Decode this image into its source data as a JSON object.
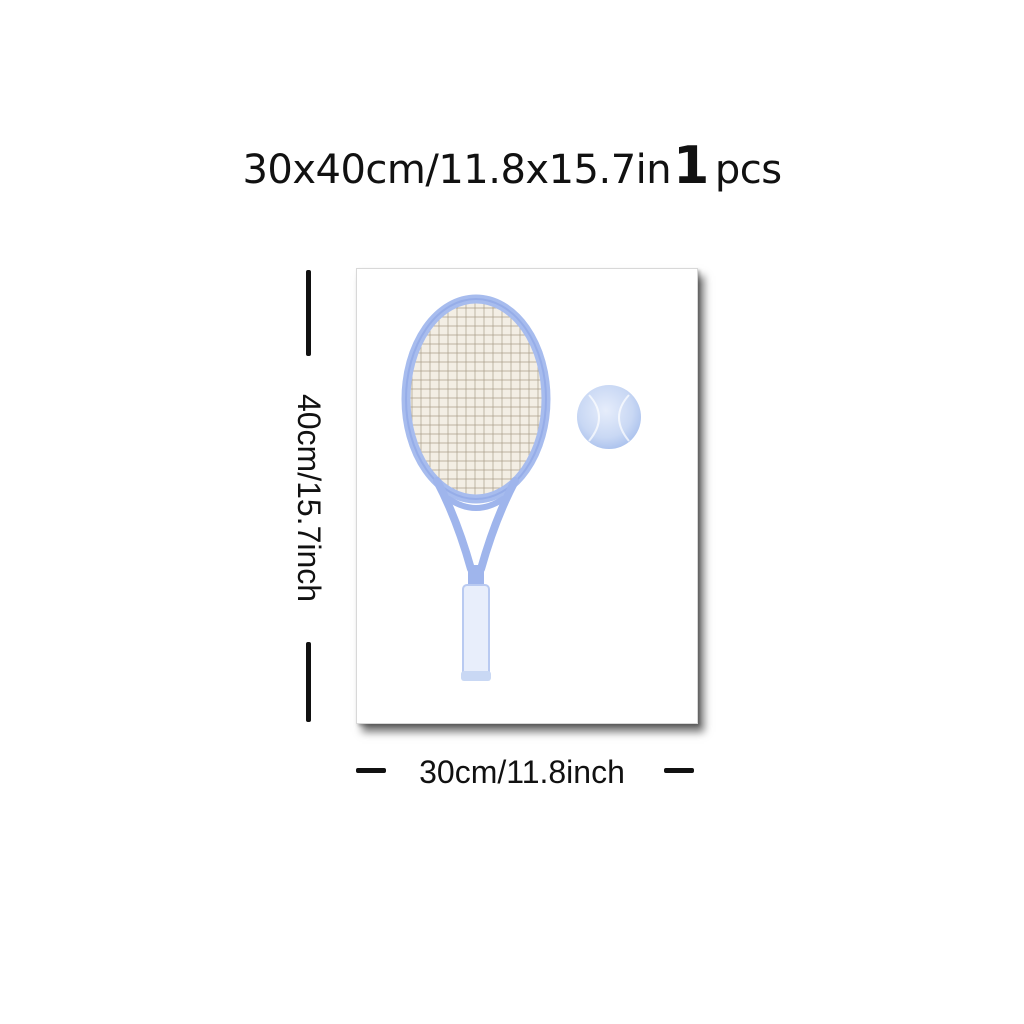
{
  "title": {
    "size_text": "30x40cm/11.8x15.7in",
    "quantity": "1",
    "unit": "pcs"
  },
  "dimensions": {
    "height_label": "40cm/15.7inch",
    "width_label": "30cm/11.8inch"
  },
  "artwork": {
    "subject": "tennis racket and ball watercolor",
    "icons": [
      "tennis-racket-icon",
      "tennis-ball-icon"
    ],
    "colors": {
      "frame_blue": "#9fb5ec",
      "frame_dark_blue": "#7e98e0",
      "strings": "#9c8f7a",
      "string_fill": "#f3eee4",
      "ball_blue": "#c9d8f4",
      "grip": "#e8eefb"
    }
  }
}
